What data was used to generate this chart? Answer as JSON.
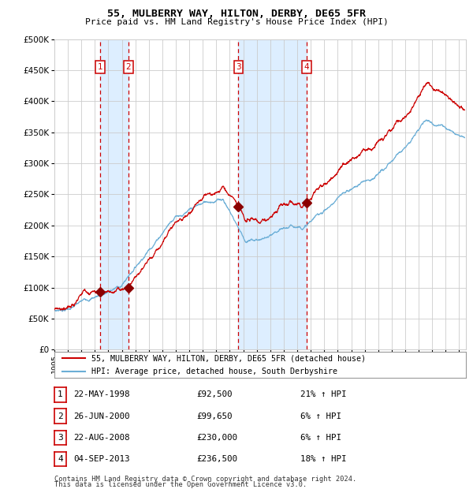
{
  "title": "55, MULBERRY WAY, HILTON, DERBY, DE65 5FR",
  "subtitle": "Price paid vs. HM Land Registry's House Price Index (HPI)",
  "legend_line1": "55, MULBERRY WAY, HILTON, DERBY, DE65 5FR (detached house)",
  "legend_line2": "HPI: Average price, detached house, South Derbyshire",
  "footer1": "Contains HM Land Registry data © Crown copyright and database right 2024.",
  "footer2": "This data is licensed under the Open Government Licence v3.0.",
  "sales": [
    {
      "num": 1,
      "date": "22-MAY-1998",
      "price": 92500,
      "pct": "21%",
      "dir": "↑"
    },
    {
      "num": 2,
      "date": "26-JUN-2000",
      "price": 99650,
      "pct": "6%",
      "dir": "↑"
    },
    {
      "num": 3,
      "date": "22-AUG-2008",
      "price": 230000,
      "pct": "6%",
      "dir": "↑"
    },
    {
      "num": 4,
      "date": "04-SEP-2013",
      "price": 236500,
      "pct": "18%",
      "dir": "↑"
    }
  ],
  "sale_dates_decimal": [
    1998.385,
    2000.48,
    2008.64,
    2013.675
  ],
  "hpi_color": "#6baed6",
  "price_color": "#cc0000",
  "sale_marker_color": "#8b0000",
  "vline_color": "#cc0000",
  "shade_color": "#ddeeff",
  "grid_color": "#cccccc",
  "bg_color": "#ffffff",
  "ylim": [
    0,
    500000
  ],
  "yticks": [
    0,
    50000,
    100000,
    150000,
    200000,
    250000,
    300000,
    350000,
    400000,
    450000,
    500000
  ],
  "xlim_start": 1995.0,
  "xlim_end": 2025.5
}
